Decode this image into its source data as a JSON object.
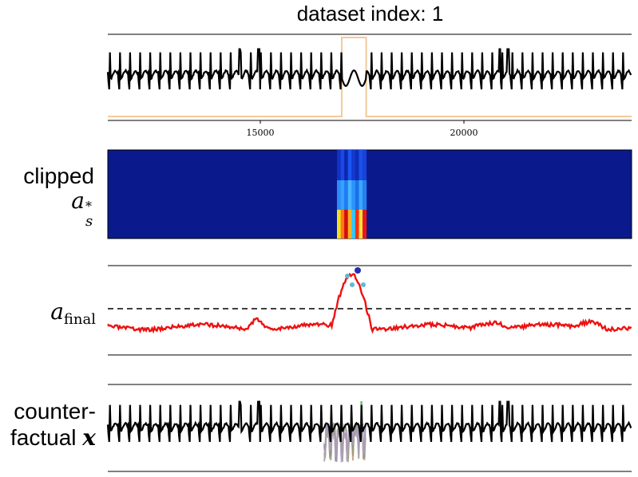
{
  "title": "dataset index: 1",
  "labels": {
    "row2_line1": "clipped",
    "row2_math_base": "a",
    "row2_math_sup": "*",
    "row2_math_sub": "s",
    "row3_math_base": "a",
    "row3_math_sub": "final",
    "row4_line1": "counter-",
    "row4_line2": "factual",
    "row4_math": "x"
  },
  "chart_data": {
    "type": "line",
    "xticks": [
      15000,
      20000
    ],
    "xtick_labels": [
      "15000",
      "20000"
    ],
    "highlight_window": [
      17000,
      17600
    ],
    "colors": {
      "signal": "#000000",
      "window": "#f5c99a",
      "score": "#ee1111",
      "heatmap_bg": "#0a1a8c",
      "threshold": "#000000"
    },
    "threshold_style": "dashed"
  }
}
